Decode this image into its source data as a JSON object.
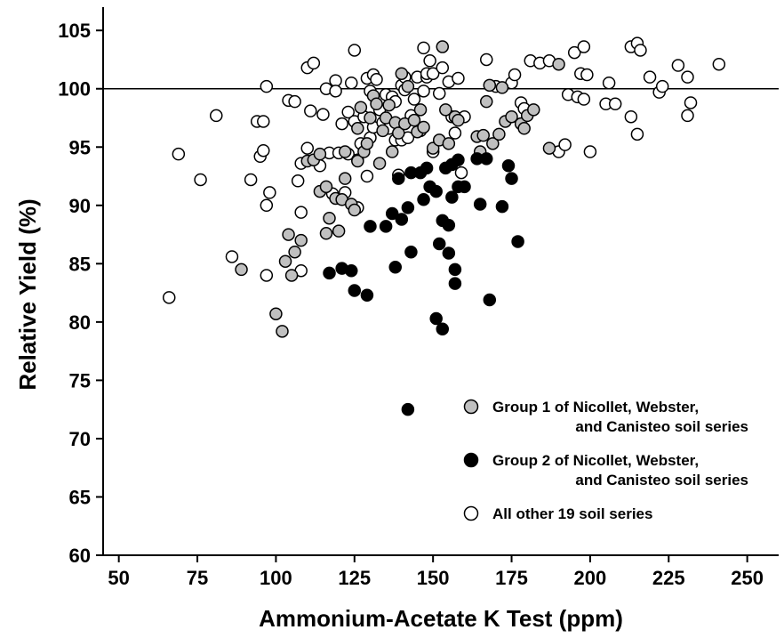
{
  "chart_data": {
    "type": "scatter",
    "title": "",
    "xlabel": "Ammonium-Acetate K Test (ppm)",
    "ylabel": "Relative Yield (%)",
    "xlim": [
      45,
      260
    ],
    "ylim": [
      60,
      107
    ],
    "xticks": [
      50,
      75,
      100,
      125,
      150,
      175,
      200,
      225,
      250
    ],
    "yticks": [
      60,
      65,
      70,
      75,
      80,
      85,
      90,
      95,
      100,
      105
    ],
    "reference_line_y": 100,
    "grid": false,
    "legend_position": "bottom-right",
    "series": [
      {
        "name": "Group 1 of Nicollet, Webster, and Canisteo soil series",
        "legend_line1": "Group 1 of Nicollet, Webster,",
        "legend_line2": "and Canisteo soil series",
        "color": "#c0c0c0",
        "points": [
          [
            89,
            84.5
          ],
          [
            100,
            80.7
          ],
          [
            102,
            79.2
          ],
          [
            103,
            85.2
          ],
          [
            104,
            87.5
          ],
          [
            105,
            84
          ],
          [
            106,
            86
          ],
          [
            108,
            87
          ],
          [
            110,
            93.8
          ],
          [
            112,
            93.9
          ],
          [
            114,
            91.2
          ],
          [
            114,
            94.4
          ],
          [
            116,
            91.6
          ],
          [
            116,
            87.6
          ],
          [
            117,
            88.9
          ],
          [
            119,
            90.6
          ],
          [
            120,
            87.8
          ],
          [
            121,
            90.5
          ],
          [
            122,
            92.3
          ],
          [
            122,
            94.6
          ],
          [
            124,
            90.1
          ],
          [
            125,
            89.6
          ],
          [
            126,
            93.8
          ],
          [
            126,
            96.6
          ],
          [
            127,
            98.4
          ],
          [
            128,
            94.6
          ],
          [
            129,
            95.3
          ],
          [
            130,
            97.5
          ],
          [
            131,
            99.4
          ],
          [
            132,
            98.7
          ],
          [
            133,
            93.6
          ],
          [
            134,
            96.4
          ],
          [
            135,
            97.5
          ],
          [
            136,
            98.6
          ],
          [
            137,
            94.6
          ],
          [
            138,
            97.1
          ],
          [
            139,
            96.2
          ],
          [
            140,
            101.3
          ],
          [
            141,
            97
          ],
          [
            142,
            100.2
          ],
          [
            144,
            97.3
          ],
          [
            145,
            96.3
          ],
          [
            146,
            98.2
          ],
          [
            147,
            96.7
          ],
          [
            150,
            94.9
          ],
          [
            152,
            95.6
          ],
          [
            153,
            103.6
          ],
          [
            154,
            98.2
          ],
          [
            155,
            95.3
          ],
          [
            157,
            97.6
          ],
          [
            158,
            97.3
          ],
          [
            164,
            95.9
          ],
          [
            165,
            94.6
          ],
          [
            166,
            96
          ],
          [
            167,
            98.9
          ],
          [
            168,
            100.3
          ],
          [
            169,
            95.3
          ],
          [
            171,
            96.1
          ],
          [
            172,
            100.1
          ],
          [
            173,
            97.2
          ],
          [
            175,
            97.6
          ],
          [
            178,
            97
          ],
          [
            179,
            96.6
          ],
          [
            180,
            97.7
          ],
          [
            182,
            98.2
          ],
          [
            190,
            102.1
          ],
          [
            187,
            94.9
          ]
        ]
      },
      {
        "name": "Group 2 of Nicollet, Webster, and Canisteo soil series",
        "legend_line1": "Group 2 of Nicollet, Webster,",
        "legend_line2": "and Canisteo soil series",
        "color": "#000000",
        "points": [
          [
            117,
            84.2
          ],
          [
            121,
            84.6
          ],
          [
            124,
            84.4
          ],
          [
            125,
            82.7
          ],
          [
            129,
            82.3
          ],
          [
            130,
            88.2
          ],
          [
            135,
            88.2
          ],
          [
            137,
            89.3
          ],
          [
            138,
            84.7
          ],
          [
            139,
            92.3
          ],
          [
            140,
            88.8
          ],
          [
            142,
            72.5
          ],
          [
            142,
            89.8
          ],
          [
            143,
            92.8
          ],
          [
            143,
            86
          ],
          [
            146,
            92.8
          ],
          [
            147,
            90.5
          ],
          [
            148,
            93.2
          ],
          [
            149,
            91.6
          ],
          [
            151,
            80.3
          ],
          [
            151,
            91.2
          ],
          [
            152,
            86.7
          ],
          [
            153,
            88.7
          ],
          [
            153,
            79.4
          ],
          [
            154,
            93.2
          ],
          [
            155,
            85.9
          ],
          [
            155,
            88.3
          ],
          [
            156,
            90.7
          ],
          [
            156,
            93.5
          ],
          [
            157,
            83.3
          ],
          [
            157,
            84.5
          ],
          [
            158,
            91.6
          ],
          [
            158,
            93.9
          ],
          [
            160,
            91.6
          ],
          [
            164,
            94
          ],
          [
            165,
            90.1
          ],
          [
            167,
            94
          ],
          [
            168,
            81.9
          ],
          [
            172,
            89.9
          ],
          [
            174,
            93.4
          ],
          [
            175,
            92.3
          ],
          [
            177,
            86.9
          ]
        ]
      },
      {
        "name": "All other 19 soil series",
        "legend_line1": "All other 19 soil series",
        "legend_line2": "",
        "color": "#ffffff",
        "points": [
          [
            66,
            82.1
          ],
          [
            69,
            94.4
          ],
          [
            76,
            92.2
          ],
          [
            81,
            97.7
          ],
          [
            86,
            85.6
          ],
          [
            92,
            92.2
          ],
          [
            94,
            97.2
          ],
          [
            95,
            94.2
          ],
          [
            96,
            94.7
          ],
          [
            96,
            97.2
          ],
          [
            97,
            90
          ],
          [
            97,
            84
          ],
          [
            97,
            100.2
          ],
          [
            98,
            91.1
          ],
          [
            104,
            99
          ],
          [
            106,
            98.9
          ],
          [
            107,
            92.1
          ],
          [
            108,
            84.4
          ],
          [
            108,
            89.4
          ],
          [
            108,
            93.6
          ],
          [
            110,
            94.9
          ],
          [
            110,
            101.8
          ],
          [
            111,
            98.1
          ],
          [
            112,
            102.2
          ],
          [
            114,
            93.4
          ],
          [
            115,
            97.8
          ],
          [
            116,
            100
          ],
          [
            117,
            94.5
          ],
          [
            118,
            91
          ],
          [
            119,
            100.7
          ],
          [
            119,
            99.8
          ],
          [
            120,
            94.5
          ],
          [
            121,
            97
          ],
          [
            122,
            91.1
          ],
          [
            123,
            94.4
          ],
          [
            123,
            98
          ],
          [
            124,
            100.5
          ],
          [
            125,
            103.3
          ],
          [
            125,
            97.2
          ],
          [
            126,
            93.9
          ],
          [
            126,
            89.8
          ],
          [
            127,
            95.3
          ],
          [
            128,
            97.6
          ],
          [
            129,
            92.5
          ],
          [
            129,
            100.9
          ],
          [
            130,
            95.8
          ],
          [
            130,
            99.8
          ],
          [
            131,
            101.2
          ],
          [
            131,
            96.7
          ],
          [
            132,
            100.8
          ],
          [
            133,
            98.2
          ],
          [
            134,
            97.1
          ],
          [
            135,
            99.5
          ],
          [
            136,
            96.6
          ],
          [
            137,
            99.3
          ],
          [
            138,
            95.6
          ],
          [
            138,
            98.9
          ],
          [
            139,
            92.6
          ],
          [
            140,
            100.3
          ],
          [
            140,
            95.6
          ],
          [
            141,
            99.9
          ],
          [
            141,
            101
          ],
          [
            142,
            95.8
          ],
          [
            143,
            97.7
          ],
          [
            144,
            99.1
          ],
          [
            145,
            101
          ],
          [
            146,
            96.4
          ],
          [
            147,
            103.5
          ],
          [
            147,
            99.8
          ],
          [
            148,
            101
          ],
          [
            148,
            101.3
          ],
          [
            149,
            102.4
          ],
          [
            150,
            101.3
          ],
          [
            150,
            94.6
          ],
          [
            152,
            99.6
          ],
          [
            153,
            101.8
          ],
          [
            155,
            100.6
          ],
          [
            156,
            97.6
          ],
          [
            157,
            96.2
          ],
          [
            158,
            100.9
          ],
          [
            159,
            92.8
          ],
          [
            160,
            97.6
          ],
          [
            167,
            102.5
          ],
          [
            170,
            100.2
          ],
          [
            175,
            100.5
          ],
          [
            176,
            101.2
          ],
          [
            178,
            98.8
          ],
          [
            179,
            98.3
          ],
          [
            181,
            102.4
          ],
          [
            184,
            102.2
          ],
          [
            187,
            102.4
          ],
          [
            190,
            94.6
          ],
          [
            192,
            95.2
          ],
          [
            193,
            99.5
          ],
          [
            195,
            103.1
          ],
          [
            196,
            99.3
          ],
          [
            197,
            101.3
          ],
          [
            198,
            103.6
          ],
          [
            198,
            99.1
          ],
          [
            199,
            101.2
          ],
          [
            200,
            94.6
          ],
          [
            205,
            98.7
          ],
          [
            206,
            100.5
          ],
          [
            208,
            98.7
          ],
          [
            213,
            97.6
          ],
          [
            213,
            103.6
          ],
          [
            215,
            96.1
          ],
          [
            215,
            103.9
          ],
          [
            216,
            103.3
          ],
          [
            219,
            101
          ],
          [
            222,
            99.7
          ],
          [
            223,
            100.2
          ],
          [
            228,
            102
          ],
          [
            231,
            97.7
          ],
          [
            231,
            101
          ],
          [
            232,
            98.8
          ],
          [
            241,
            102.1
          ]
        ]
      }
    ]
  }
}
